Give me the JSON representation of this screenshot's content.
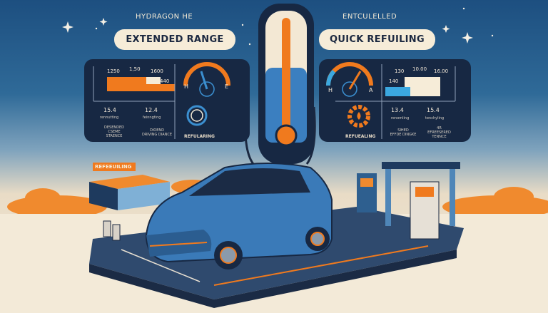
{
  "header": {
    "left": "HYDRAGON HE",
    "right": "ENTCULELLED"
  },
  "left_card": {
    "title": "EXTENDED RANGE",
    "chart_labels": [
      "1250",
      "1,50",
      "1600",
      "440"
    ],
    "gauge": {
      "left": "H",
      "right": "E"
    },
    "stats": [
      {
        "value": "15.4",
        "label": "rennutting",
        "caption": [
          "DESENDED",
          "CSEME",
          "STAENCE"
        ]
      },
      {
        "value": "12.4",
        "label": "feinngting",
        "caption": [
          "DIOEND",
          "DRIVING DIANCE"
        ]
      }
    ],
    "timer_label": "REFULARING"
  },
  "right_card": {
    "title": "QUICK REFUILING",
    "chart_labels": [
      "130",
      "10.00",
      "16.00",
      "140"
    ],
    "gauge": {
      "left": "H",
      "right": "A"
    },
    "gear_label": "REFUEALING",
    "stats": [
      {
        "value": "13.4",
        "label": "renomling",
        "caption": [
          "SIHED",
          "EFFDE DINGKE"
        ]
      },
      {
        "value": "15.4",
        "label": "tenchyling",
        "caption": [
          "4R",
          "EFREESERED",
          "TENNCE"
        ]
      }
    ]
  },
  "station_sign": "REFEEUILING",
  "colors": {
    "accent": "#f07a1e",
    "navy": "#172843",
    "blue": "#3b8fd0",
    "cream": "#f6ecd8"
  }
}
